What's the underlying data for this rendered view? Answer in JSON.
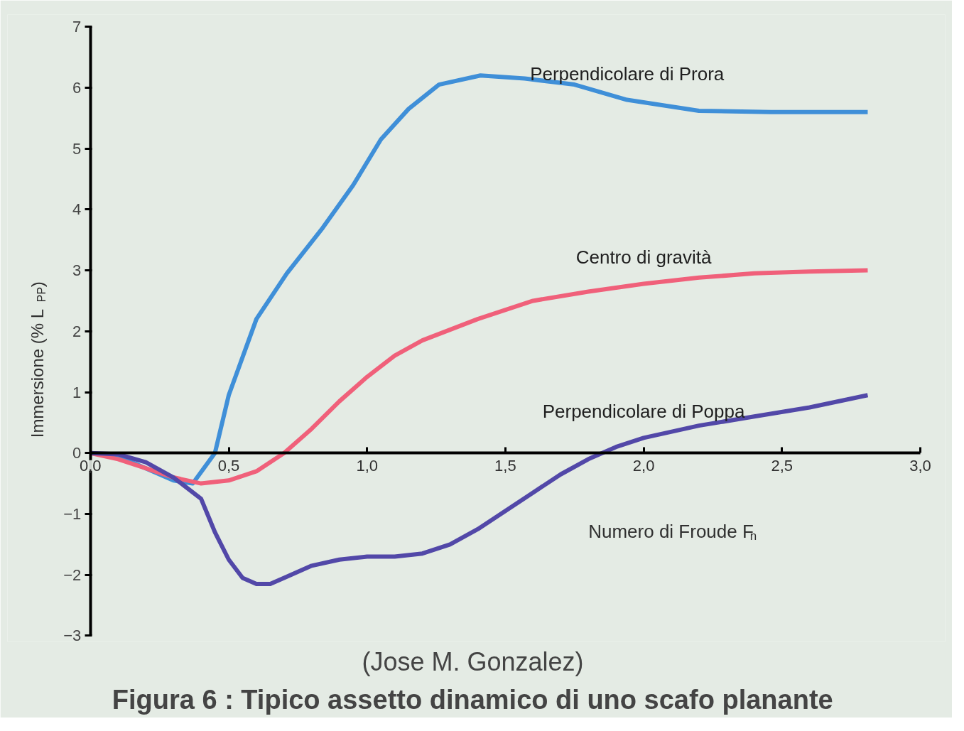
{
  "chart_data": {
    "type": "line",
    "title": "Figura  6 : Tipico assetto dinamico di uno scafo planante",
    "subtitle": "(Jose  M. Gonzalez)",
    "xlabel": "Numero di Froude   F$_{n}$",
    "ylabel": "Immersione     (% L$_{PP}$)",
    "xlim": [
      0,
      3
    ],
    "ylim": [
      -3,
      7
    ],
    "xticks": [
      {
        "value": 0,
        "label": "0,0"
      },
      {
        "value": 0.5,
        "label": "0,5"
      },
      {
        "value": 1,
        "label": "1,0"
      },
      {
        "value": 1.5,
        "label": "1,5"
      },
      {
        "value": 2,
        "label": "2,0"
      },
      {
        "value": 2.5,
        "label": "2,5"
      },
      {
        "value": 3,
        "label": "3,0"
      }
    ],
    "yticks": [
      -3,
      -2,
      -1,
      0,
      1,
      2,
      3,
      4,
      5,
      6,
      7
    ],
    "grid": false,
    "legend": false,
    "marker": "none",
    "line_style": "solid",
    "series": [
      {
        "name": "Perpendicolare di Prora",
        "color": "#3f8fd8",
        "x": [
          0,
          0.1,
          0.2,
          0.3,
          0.37,
          0.45,
          0.5,
          0.6,
          0.71,
          0.84,
          0.95,
          1.05,
          1.15,
          1.26,
          1.41,
          1.57,
          1.75,
          1.94,
          2.2,
          2.46,
          2.81
        ],
        "values": [
          0,
          -0.05,
          -0.25,
          -0.45,
          -0.5,
          0,
          0.95,
          2.2,
          2.95,
          3.7,
          4.4,
          5.15,
          5.65,
          6.05,
          6.2,
          6.15,
          6.05,
          5.8,
          5.62,
          5.6,
          5.6
        ]
      },
      {
        "name": "Centro di gravità",
        "color": "#f0607a",
        "x": [
          0,
          0.1,
          0.2,
          0.3,
          0.4,
          0.5,
          0.6,
          0.7,
          0.8,
          0.9,
          1.0,
          1.1,
          1.2,
          1.4,
          1.6,
          1.8,
          2.0,
          2.2,
          2.4,
          2.6,
          2.81
        ],
        "values": [
          0,
          -0.1,
          -0.25,
          -0.4,
          -0.5,
          -0.45,
          -0.3,
          0,
          0.4,
          0.85,
          1.25,
          1.6,
          1.85,
          2.2,
          2.5,
          2.65,
          2.78,
          2.88,
          2.95,
          2.98,
          3.0
        ]
      },
      {
        "name": "Perpendicolare di Poppa",
        "color": "#5248a8",
        "x": [
          0,
          0.1,
          0.2,
          0.3,
          0.4,
          0.45,
          0.5,
          0.55,
          0.6,
          0.65,
          0.7,
          0.8,
          0.9,
          1.0,
          1.1,
          1.2,
          1.3,
          1.4,
          1.5,
          1.6,
          1.7,
          1.8,
          1.9,
          2.0,
          2.2,
          2.4,
          2.6,
          2.81
        ],
        "values": [
          0,
          -0.02,
          -0.15,
          -0.4,
          -0.75,
          -1.3,
          -1.75,
          -2.05,
          -2.15,
          -2.15,
          -2.05,
          -1.85,
          -1.75,
          -1.7,
          -1.7,
          -1.65,
          -1.5,
          -1.25,
          -0.95,
          -0.65,
          -0.35,
          -0.1,
          0.1,
          0.25,
          0.45,
          0.6,
          0.75,
          0.95
        ]
      }
    ]
  }
}
